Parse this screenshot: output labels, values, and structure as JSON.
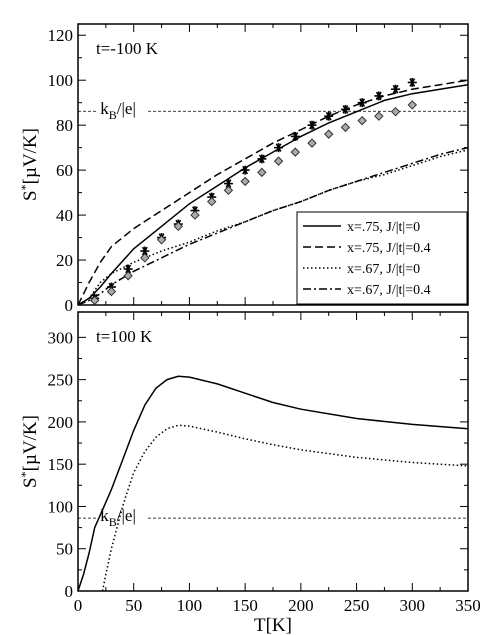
{
  "chart_data": [
    {
      "type": "line",
      "panel": "top",
      "annotation": "t=-100 K",
      "xlabel": "",
      "ylabel": "S*[µV/K]",
      "xlim": [
        0,
        350
      ],
      "ylim": [
        0,
        125
      ],
      "xticks": [
        0,
        50,
        100,
        150,
        200,
        250,
        300,
        350
      ],
      "yticks": [
        0,
        20,
        40,
        60,
        80,
        100,
        120
      ],
      "show_x_tick_labels": false,
      "reference_line": {
        "label": "k_B/|e|",
        "y": 86.2
      },
      "legend": {
        "placement": "lower-right"
      },
      "series": [
        {
          "name": "x=.75, J/|t|=0",
          "style": "solid",
          "x": [
            0,
            10,
            20,
            30,
            50,
            75,
            100,
            125,
            150,
            175,
            200,
            225,
            250,
            275,
            300,
            325,
            350
          ],
          "y": [
            0,
            3,
            8,
            14,
            25,
            35,
            45,
            53,
            61,
            68,
            75,
            81,
            86,
            91,
            94,
            96,
            98
          ]
        },
        {
          "name": "x=.75, J/|t|=0.4",
          "style": "dashed",
          "x": [
            0,
            5,
            10,
            20,
            30,
            50,
            75,
            100,
            125,
            150,
            175,
            200,
            225,
            250,
            275,
            300,
            325,
            350
          ],
          "y": [
            0,
            5,
            10,
            19,
            26,
            34,
            42,
            50,
            58,
            65,
            72,
            78,
            84,
            89,
            93,
            96,
            98,
            100
          ]
        },
        {
          "name": "x=.67, J/|t|=0",
          "style": "dotted",
          "x": [
            0,
            10,
            20,
            30,
            50,
            75,
            100,
            125,
            150,
            175,
            200,
            225,
            250,
            275,
            300,
            325,
            350
          ],
          "y": [
            0,
            3,
            10,
            14,
            19,
            24,
            28,
            33,
            37,
            42,
            46,
            51,
            55,
            58,
            62,
            66,
            69
          ]
        },
        {
          "name": "x=.67, J/|t|=0.4",
          "style": "dashdot",
          "x": [
            0,
            10,
            20,
            30,
            50,
            75,
            100,
            125,
            150,
            175,
            200,
            225,
            250,
            275,
            300,
            325,
            350
          ],
          "y": [
            0,
            2,
            5,
            9,
            15,
            21,
            27,
            32,
            37,
            42,
            46,
            51,
            55,
            59,
            63,
            67,
            70
          ]
        },
        {
          "name": "",
          "marker": "asterisk",
          "x": [
            15,
            30,
            45,
            60,
            75,
            90,
            105,
            120,
            135,
            150,
            165,
            180,
            195,
            210,
            225,
            240,
            255,
            270,
            285,
            300
          ],
          "y": [
            3,
            8,
            16,
            24,
            30,
            36,
            42,
            48,
            54,
            60,
            65,
            70,
            75,
            80,
            84,
            87,
            90,
            93,
            96,
            99
          ]
        },
        {
          "name": "",
          "marker": "diamond",
          "x": [
            15,
            30,
            45,
            60,
            75,
            90,
            105,
            120,
            135,
            150,
            165,
            180,
            195,
            210,
            225,
            240,
            255,
            270,
            285,
            300
          ],
          "y": [
            2,
            6,
            13,
            21,
            29,
            35,
            40,
            46,
            51,
            55,
            59,
            64,
            68,
            72,
            76,
            79,
            82,
            84,
            86,
            89
          ]
        }
      ]
    },
    {
      "type": "line",
      "panel": "bottom",
      "annotation": "t=100 K",
      "xlabel": "T[K]",
      "ylabel": "S*[µV/K]",
      "xlim": [
        0,
        350
      ],
      "ylim": [
        0,
        330
      ],
      "xticks": [
        0,
        50,
        100,
        150,
        200,
        250,
        300,
        350
      ],
      "yticks": [
        0,
        50,
        100,
        150,
        200,
        250,
        300
      ],
      "reference_line": {
        "label": "k_B/|e|",
        "y": 86.2
      },
      "series": [
        {
          "name": "x=.75, J/|t|=0",
          "style": "solid",
          "x": [
            0,
            5,
            10,
            15,
            20,
            25,
            30,
            40,
            50,
            60,
            70,
            80,
            90,
            100,
            125,
            150,
            175,
            200,
            250,
            300,
            350
          ],
          "y": [
            0,
            20,
            45,
            75,
            90,
            105,
            120,
            155,
            190,
            220,
            240,
            250,
            254,
            253,
            245,
            234,
            223,
            215,
            204,
            197,
            192
          ]
        },
        {
          "name": "x=.67, J/|t|=0",
          "style": "dotted",
          "x": [
            22,
            25,
            30,
            35,
            40,
            45,
            50,
            60,
            70,
            80,
            90,
            100,
            125,
            150,
            175,
            200,
            250,
            300,
            350
          ],
          "y": [
            0,
            20,
            50,
            75,
            100,
            120,
            140,
            165,
            182,
            192,
            196,
            195,
            188,
            180,
            173,
            167,
            158,
            152,
            148
          ]
        }
      ]
    }
  ]
}
